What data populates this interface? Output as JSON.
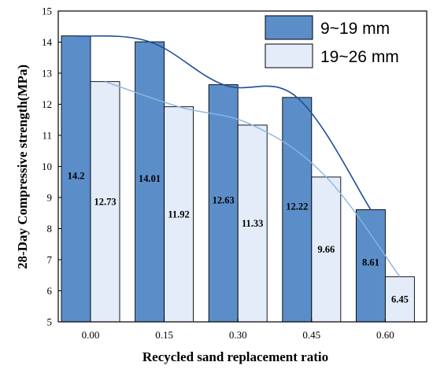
{
  "chart_data": {
    "type": "bar",
    "categories": [
      "0.00",
      "0.15",
      "0.30",
      "0.45",
      "0.60"
    ],
    "series": [
      {
        "name": "9~19 mm",
        "values": [
          14.2,
          14.01,
          12.63,
          12.22,
          8.61
        ],
        "labels": [
          "14.2",
          "14.01",
          "12.63",
          "12.22",
          "8.61"
        ],
        "color": "#5b8ec9",
        "line_color": "#1f4e96"
      },
      {
        "name": "19~26 mm",
        "values": [
          12.73,
          11.92,
          11.33,
          9.66,
          6.45
        ],
        "labels": [
          "12.73",
          "11.92",
          "11.33",
          "9.66",
          "6.45"
        ],
        "color": "#e3ecf8",
        "line_color": "#8cb4e0"
      }
    ],
    "title": "",
    "xlabel": "Recycled sand replacement ratio",
    "ylabel": "28-Day Compressive strength(MPa)",
    "ylim": [
      5,
      15
    ],
    "yticks": [
      "5",
      "6",
      "7",
      "8",
      "9",
      "10",
      "11",
      "12",
      "13",
      "14",
      "15"
    ],
    "grid": false,
    "legend_position": "top-right",
    "trend_lines": true
  }
}
